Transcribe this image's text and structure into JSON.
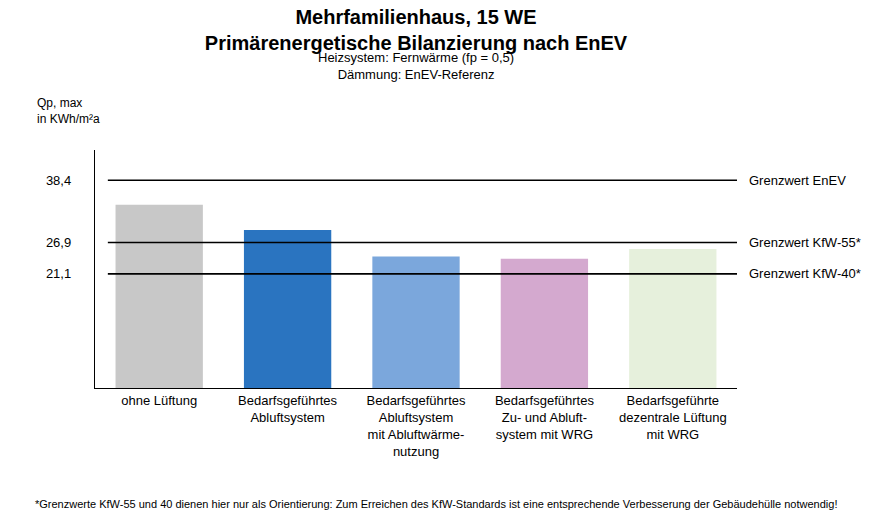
{
  "chart_data": {
    "type": "bar",
    "title": [
      "Mehrfamilienhaus, 15 WE",
      "Primärenergetische Bilanzierung nach EnEV"
    ],
    "subtitle": [
      "Heizsystem: Fernwärme (fp = 0,5)",
      "Dämmung: EnEV-Referenz"
    ],
    "y_label": [
      "Qp, max",
      "in KWh/m²a"
    ],
    "categories": [
      "ohne Lüftung",
      "Bedarfsgeführtes\nAbluftsystem",
      "Bedarfsgeführtes\nAbluftsystem\nmit Abluftwärme-\nnutzung",
      "Bedarfsgeführtes\nZu- und Abluft-\nsystem mit WRG",
      "Bedarfsgeführte\ndezentrale Lüftung\nmit WRG"
    ],
    "values": [
      33.9,
      29.2,
      24.3,
      23.9,
      25.7
    ],
    "colors": [
      "#c8c8c8",
      "#2a74c0",
      "#7ba7dc",
      "#d4a9cf",
      "#e6f0dc"
    ],
    "ylim": [
      0,
      44
    ],
    "yticks": [
      {
        "value": 21.1,
        "label": "21,1"
      },
      {
        "value": 26.9,
        "label": "26,9"
      },
      {
        "value": 38.4,
        "label": "38,4"
      }
    ],
    "reference_lines": [
      {
        "value": 38.4,
        "label": "Grenzwert EnEV"
      },
      {
        "value": 26.9,
        "label": "Grenzwert KfW-55*"
      },
      {
        "value": 21.1,
        "label": "Grenzwert KfW-40*"
      }
    ],
    "footnote": "*Grenzwerte KfW-55 und 40 dienen hier nur als Orientierung: Zum Erreichen des KfW-Standards ist eine entsprechende Verbesserung der Gebäudehülle notwendig!",
    "grid": false
  }
}
